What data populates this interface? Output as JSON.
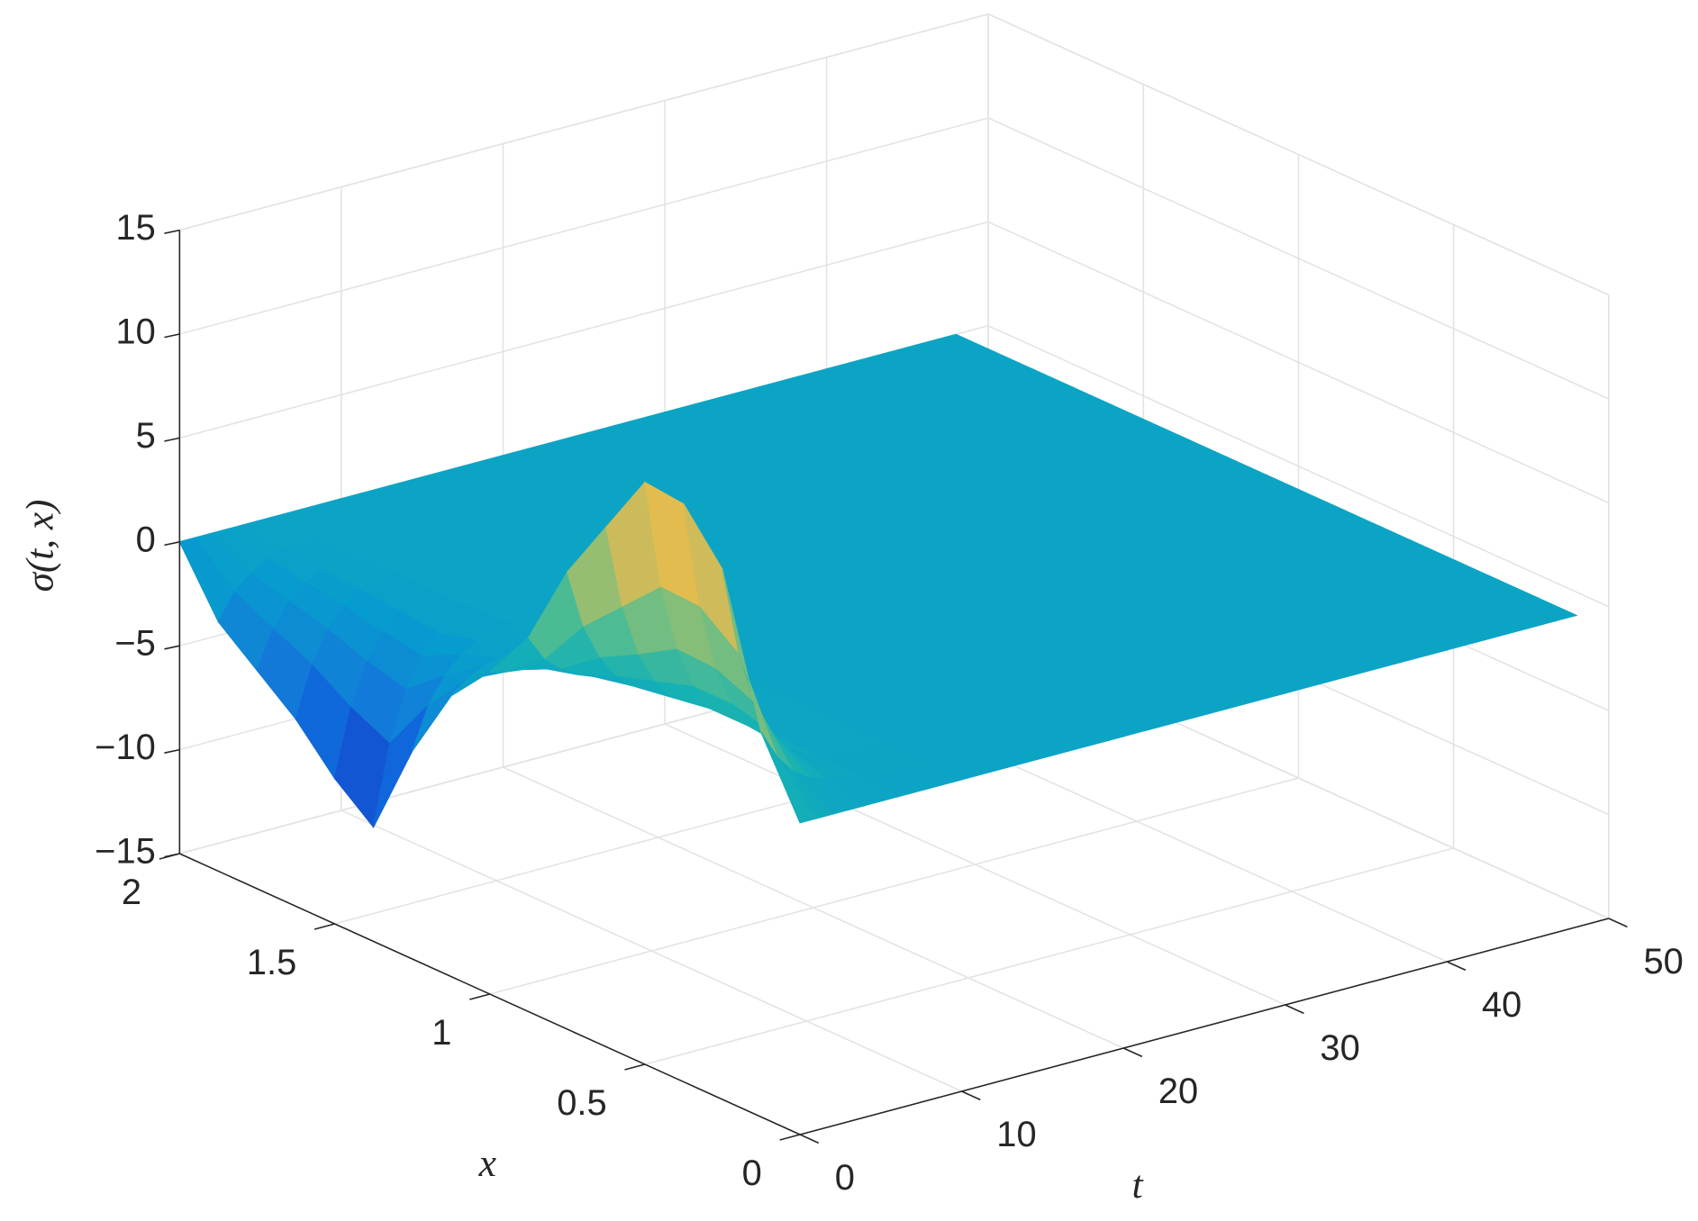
{
  "chart_data": {
    "type": "surface",
    "z_label": "σ(t, x)",
    "x_label": "x",
    "t_label": "t",
    "colormap": "parula",
    "grid": true,
    "t": [
      0,
      1,
      2,
      3,
      4,
      6,
      10,
      20,
      30,
      40,
      48
    ],
    "x": [
      0,
      0.125,
      0.25,
      0.375,
      0.5,
      0.625,
      0.75,
      0.875,
      1,
      1.125,
      1.25,
      1.375,
      1.5,
      1.625,
      1.75,
      1.875,
      2
    ],
    "z": [
      [
        0,
        3.5,
        10.5,
        12.8,
        13,
        10,
        7,
        3,
        0.5,
        -1.5,
        -5,
        -9.5,
        -8,
        -6,
        -4.5,
        -3,
        0
      ],
      [
        0,
        2.1,
        6.3,
        7.7,
        7.8,
        6,
        4.2,
        1.8,
        0.3,
        -0.9,
        -3,
        -5.7,
        -4.8,
        -3.6,
        -2.7,
        -1.8,
        0
      ],
      [
        0,
        1.2,
        3.7,
        4.5,
        4.6,
        3.5,
        2.5,
        1.1,
        0.2,
        -0.5,
        -1.8,
        -3.3,
        -2.8,
        -2.1,
        -1.6,
        -1.1,
        0
      ],
      [
        0,
        0.7,
        2.1,
        2.6,
        2.6,
        2,
        1.4,
        0.6,
        0.1,
        -0.3,
        -1,
        -1.9,
        -1.6,
        -1.2,
        -0.9,
        -0.6,
        0
      ],
      [
        0,
        0.4,
        1.1,
        1.3,
        1.3,
        1,
        0.7,
        0.3,
        0,
        -0.2,
        -0.5,
        -1,
        -0.8,
        -0.6,
        -0.5,
        -0.3,
        0
      ],
      [
        0,
        0.1,
        0.2,
        0.3,
        0.3,
        0.2,
        0.1,
        0.1,
        0,
        0,
        -0.1,
        -0.2,
        -0.2,
        -0.1,
        -0.1,
        -0.1,
        0
      ],
      [
        0,
        0,
        0,
        0,
        0,
        0,
        0,
        0,
        0,
        0,
        0,
        0,
        0,
        0,
        0,
        0,
        0
      ],
      [
        0,
        0,
        0,
        0,
        0,
        0,
        0,
        0,
        0,
        0,
        0,
        0,
        0,
        0,
        0,
        0,
        0
      ],
      [
        0,
        0,
        0,
        0,
        0,
        0,
        0,
        0,
        0,
        0,
        0,
        0,
        0,
        0,
        0,
        0,
        0
      ],
      [
        0,
        0,
        0,
        0,
        0,
        0,
        0,
        0,
        0,
        0,
        0,
        0,
        0,
        0,
        0,
        0,
        0
      ],
      [
        0,
        0,
        0,
        0,
        0,
        0,
        0,
        0,
        0,
        0,
        0,
        0,
        0,
        0,
        0,
        0,
        0
      ]
    ],
    "tlim": [
      0,
      50
    ],
    "tticks": [
      0,
      10,
      20,
      30,
      40,
      50
    ],
    "xlim": [
      0,
      2
    ],
    "xticks": [
      0,
      0.5,
      1,
      1.5,
      2
    ],
    "zlim": [
      -15,
      15
    ],
    "zticks": [
      {
        "value": -15,
        "label": "−15"
      },
      {
        "value": -10,
        "label": "−10"
      },
      {
        "value": -5,
        "label": "−5"
      },
      0,
      5,
      10,
      15
    ]
  }
}
